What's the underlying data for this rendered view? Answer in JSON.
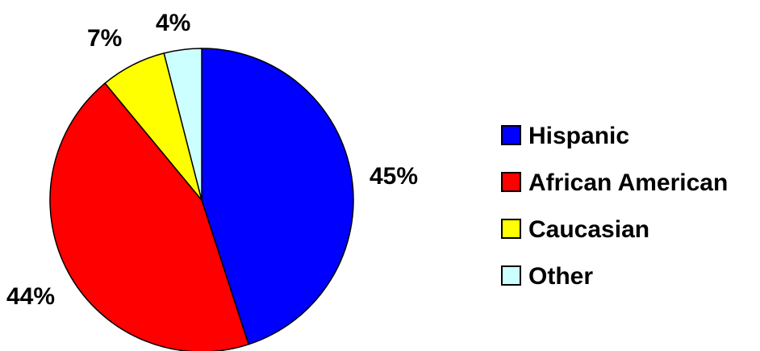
{
  "chart_data": {
    "type": "pie",
    "title": "",
    "categories": [
      "Hispanic",
      "African American",
      "Caucasian",
      "Other"
    ],
    "values": [
      45,
      44,
      7,
      4
    ],
    "unit": "%",
    "value_labels": [
      "45%",
      "44%",
      "7%",
      "4%"
    ],
    "colors": [
      "#0000FF",
      "#FF0000",
      "#FFFF00",
      "#CCFFFF"
    ],
    "start_angle_deg": 0,
    "direction": "clockwise",
    "legend": {
      "position": "right",
      "entries": [
        "Hispanic",
        "African American",
        "Caucasian",
        "Other"
      ]
    }
  }
}
